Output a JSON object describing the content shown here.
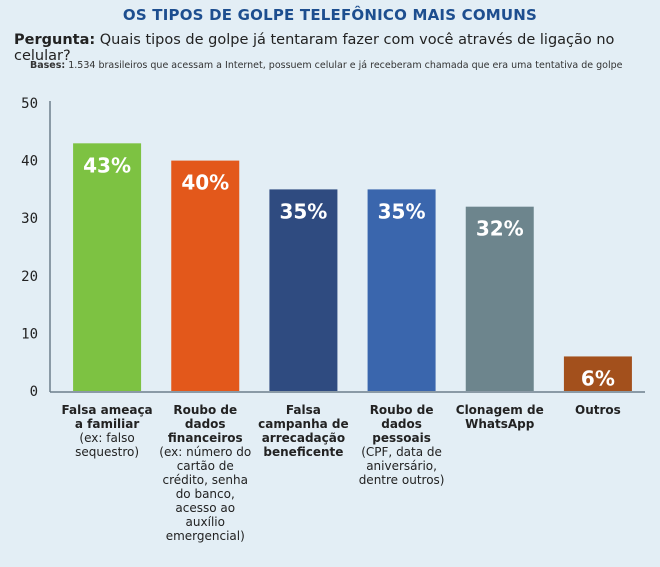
{
  "header": {
    "title": "OS TIPOS DE GOLPE TELEFÔNICO MAIS COMUNS",
    "question_label": "Pergunta:",
    "question_text": " Quais tipos de golpe já tentaram fazer com você através de ligação no celular?",
    "bases_label": "Bases:",
    "bases_text": " 1.534 brasileiros que acessam a Internet, possuem celular e já receberam chamada que era uma tentativa de golpe"
  },
  "colors": {
    "background": "#e3eef5",
    "title": "#1d4e8f",
    "axis": "#6d7f8c",
    "bar_label": "#ffffff"
  },
  "chart_data": {
    "type": "bar",
    "ylim": [
      0,
      50
    ],
    "yticks": [
      "0",
      "10",
      "20",
      "30",
      "40",
      "50"
    ],
    "grid": false,
    "categories": [
      {
        "label": "Falsa ameaça a familiar",
        "note": "(ex: falso sequestro)",
        "value": 43,
        "value_label": "43%",
        "color": "#7dc242"
      },
      {
        "label": "Roubo de dados financeiros",
        "note": "(ex: número do cartão de crédito, senha do banco, acesso ao auxílio emergencial)",
        "value": 40,
        "value_label": "40%",
        "color": "#e3581b"
      },
      {
        "label": "Falsa campanha de arrecadação beneficente",
        "note": "",
        "value": 35,
        "value_label": "35%",
        "color": "#2f4b80"
      },
      {
        "label": "Roubo de dados pessoais",
        "note": "(CPF, data de aniversário, dentre outros)",
        "value": 35,
        "value_label": "35%",
        "color": "#3a66ad"
      },
      {
        "label": "Clonagem de WhatsApp",
        "note": "",
        "value": 32,
        "value_label": "32%",
        "color": "#6d858d"
      },
      {
        "label": "Outros",
        "note": "",
        "value": 6,
        "value_label": "6%",
        "color": "#a3501c"
      }
    ]
  }
}
